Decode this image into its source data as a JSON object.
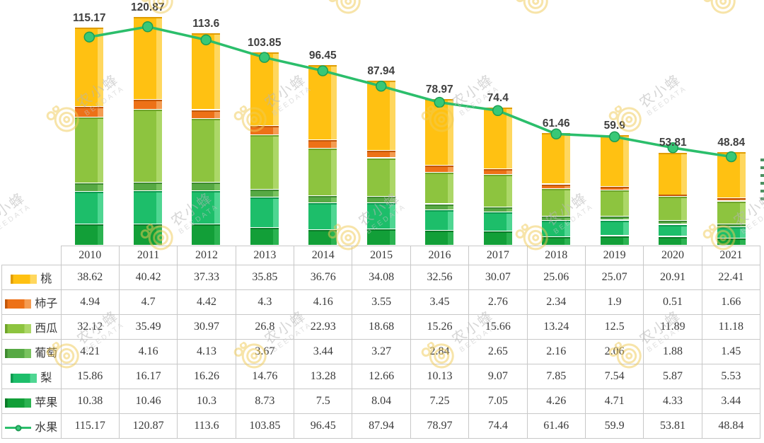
{
  "watermark": {
    "brand": "农小蜂",
    "sub": "BEEDATA"
  },
  "chart_data": {
    "type": "bar",
    "subtype": "stacked-3d-columns-with-total-line",
    "title": "",
    "xlabel": "",
    "ylabel": "",
    "axes_visible": false,
    "grid": false,
    "legend_position": "table-left-column",
    "data_labels": "total line values shown above each column",
    "categories": [
      "2010",
      "2011",
      "2012",
      "2013",
      "2014",
      "2015",
      "2016",
      "2017",
      "2018",
      "2019",
      "2020",
      "2021"
    ],
    "stack_order_bottom_to_top": [
      "苹果",
      "梨",
      "葡萄",
      "西瓜",
      "柿子",
      "桃"
    ],
    "series": [
      {
        "name": "桃",
        "type": "bar",
        "color": "#FFC112",
        "color_light": "#FFD75E",
        "color_dark": "#E09D02",
        "values": [
          38.62,
          40.42,
          37.33,
          35.85,
          36.76,
          34.08,
          32.56,
          30.07,
          25.06,
          25.07,
          20.91,
          22.41
        ]
      },
      {
        "name": "柿子",
        "type": "bar",
        "color": "#ED7117",
        "color_light": "#F49C52",
        "color_dark": "#C25708",
        "values": [
          4.94,
          4.7,
          4.42,
          4.3,
          4.16,
          3.55,
          3.45,
          2.76,
          2.34,
          1.9,
          0.51,
          1.66
        ]
      },
      {
        "name": "西瓜",
        "type": "bar",
        "color": "#8DC43F",
        "color_light": "#ACD768",
        "color_dark": "#6FA42B",
        "values": [
          32.12,
          35.49,
          30.97,
          26.8,
          22.93,
          18.68,
          15.26,
          15.66,
          13.24,
          12.5,
          11.89,
          11.18
        ]
      },
      {
        "name": "葡萄",
        "type": "bar",
        "color": "#57A944",
        "color_light": "#79C25F",
        "color_dark": "#3F8A30",
        "values": [
          4.21,
          4.16,
          4.13,
          3.67,
          3.44,
          3.27,
          2.84,
          2.65,
          2.16,
          2.06,
          1.88,
          1.45
        ]
      },
      {
        "name": "梨",
        "type": "bar",
        "color": "#1DBE6A",
        "color_light": "#4FD692",
        "color_dark": "#0E9A50",
        "values": [
          15.86,
          16.17,
          16.26,
          14.76,
          13.28,
          12.66,
          10.13,
          9.07,
          7.85,
          7.54,
          5.87,
          5.53
        ]
      },
      {
        "name": "苹果",
        "type": "bar",
        "color": "#129F38",
        "color_light": "#2BB351",
        "color_dark": "#0A7A28",
        "values": [
          10.38,
          10.46,
          10.3,
          8.73,
          7.5,
          8.04,
          7.25,
          7.05,
          4.26,
          4.71,
          4.33,
          3.44
        ]
      },
      {
        "name": "水果",
        "type": "line",
        "color": "#2BBE6B",
        "marker_fill": "#38C877",
        "marker_stroke": "#1D9E53",
        "values": [
          115.17,
          120.87,
          113.6,
          103.85,
          96.45,
          87.94,
          78.97,
          74.4,
          61.46,
          59.9,
          53.81,
          48.84
        ]
      }
    ]
  }
}
